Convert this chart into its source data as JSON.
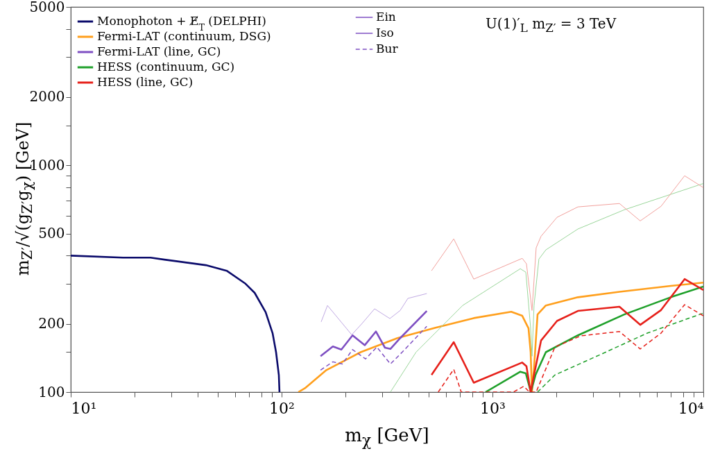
{
  "chart_data": {
    "type": "line",
    "xlabel": "m$_{χ}$ [GeV]",
    "ylabel": "m$_{Z′}$/√(g$_{Z′}$g$_{χ}$) [GeV]",
    "log": "xy",
    "legend": "top left",
    "xlim": [
      10,
      10000
    ],
    "ylim": [
      100,
      5000
    ],
    "xticks": [
      {
        "value": 10,
        "label": "10¹"
      },
      {
        "value": 20,
        "label": null
      },
      {
        "value": 30,
        "label": null
      },
      {
        "value": 40,
        "label": null
      },
      {
        "value": 50,
        "label": null
      },
      {
        "value": 60,
        "label": null
      },
      {
        "value": 70,
        "label": null
      },
      {
        "value": 80,
        "label": null
      },
      {
        "value": 90,
        "label": null
      },
      {
        "value": 100,
        "label": "10²"
      },
      {
        "value": 200,
        "label": null
      },
      {
        "value": 300,
        "label": null
      },
      {
        "value": 400,
        "label": null
      },
      {
        "value": 500,
        "label": null
      },
      {
        "value": 600,
        "label": null
      },
      {
        "value": 700,
        "label": null
      },
      {
        "value": 800,
        "label": null
      },
      {
        "value": 900,
        "label": null
      },
      {
        "value": 1000,
        "label": "10³"
      },
      {
        "value": 2000,
        "label": null
      },
      {
        "value": 3000,
        "label": null
      },
      {
        "value": 4000,
        "label": null
      },
      {
        "value": 5000,
        "label": null
      },
      {
        "value": 6000,
        "label": null
      },
      {
        "value": 7000,
        "label": null
      },
      {
        "value": 8000,
        "label": null
      },
      {
        "value": 9000,
        "label": null
      },
      {
        "value": 10000,
        "label": "10⁴"
      }
    ],
    "yticks": [
      100,
      {
        "value": 150,
        "label": null
      },
      200,
      {
        "value": 300,
        "label": null
      },
      {
        "value": 400,
        "label": null
      },
      500,
      {
        "value": 600,
        "label": null
      },
      {
        "value": 700,
        "label": null
      },
      {
        "value": 800,
        "label": null
      },
      {
        "value": 900,
        "label": null
      },
      1000,
      {
        "value": 1500,
        "label": null
      },
      2000,
      {
        "value": 3000,
        "label": null
      },
      {
        "value": 4000,
        "label": null
      },
      5000
    ],
    "annotations": [
      "Ein",
      "Iso",
      "Bur",
      "U(1)′$_{L}$   m$_{Z′}$ = 3 TeV"
    ],
    "series": [
      {
        "name": "Monophoton + E̸$_{T}$ (DELPHI)",
        "color": "#0b0b6b",
        "line_style": "solid",
        "x": [
          10,
          17.7,
          23.9,
          27.8,
          43.7,
          54.9,
          67,
          74.5,
          84,
          90.6,
          94.1,
          97,
          97.7
        ],
        "values": [
          400,
          392,
          392,
          384,
          363,
          343,
          302,
          274,
          225,
          182,
          150,
          119,
          100
        ]
      },
      {
        "name": "Fermi-LAT (continuum, DSG)",
        "color": "#ff9f1c",
        "line_style": "solid",
        "x": [
          120,
          129,
          163,
          237,
          354,
          533,
          815,
          1227,
          1384,
          1482,
          1517,
          1538,
          1574,
          1636,
          1791,
          2541,
          4000,
          7000,
          10000
        ],
        "values": [
          100,
          104,
          125,
          150,
          173,
          192,
          212,
          226,
          217,
          191,
          150,
          100,
          128,
          220,
          241,
          262,
          277,
          294,
          304
        ]
      },
      {
        "name": "Fermi-LAT (line, GC)",
        "color": "#7e4fc2",
        "line_style": "solid",
        "x": [
          153,
          175,
          192,
          217,
          248,
          280,
          309,
          328,
          365,
          488
        ],
        "values": [
          144,
          159,
          154,
          178,
          161,
          185,
          157,
          155,
          173,
          228
        ]
      },
      {
        "color": "#c0a9e3",
        "line_style": "solid",
        "x": [
          154,
          165,
          215,
          241,
          276,
          326,
          365,
          397,
          488
        ],
        "values": [
          204,
          241,
          179,
          201,
          233,
          211,
          229,
          259,
          272
        ]
      },
      {
        "color": "#7e4fc2",
        "line_style": "dashed",
        "x": [
          153,
          175,
          194,
          217,
          250,
          283,
          328,
          373,
          488
        ],
        "values": [
          125,
          136,
          133,
          154,
          140,
          158,
          133,
          150,
          195
        ]
      },
      {
        "name": "HESS (continuum, GC)",
        "color": "#1fa02a",
        "line_style": "solid",
        "x": [
          927,
          1355,
          1439,
          1520,
          1600,
          1791,
          2541,
          4217,
          7000,
          10000
        ],
        "values": [
          100,
          123,
          121,
          100,
          119,
          150,
          178,
          220,
          262,
          292
        ]
      },
      {
        "color": "#9ad69a",
        "line_style": "solid",
        "x": [
          328,
          434,
          722,
          1355,
          1439,
          1517,
          1540,
          1574,
          1660,
          1791,
          2541,
          4217,
          7000,
          10000
        ],
        "values": [
          100,
          150,
          241,
          350,
          338,
          191,
          144,
          241,
          386,
          424,
          524,
          637,
          745,
          832
        ]
      },
      {
        "color": "#1fa02a",
        "line_style": "dashed",
        "x": [
          1636,
          1977,
          3282,
          5420,
          10000
        ],
        "values": [
          100,
          119,
          147,
          182,
          223
        ]
      },
      {
        "name": "HESS (line, GC)",
        "color": "#e6201a",
        "line_style": "solid",
        "x": [
          514,
          655,
          815,
          1384,
          1449,
          1517,
          1574,
          1700,
          2023,
          2541,
          4000,
          5020,
          6300,
          8150,
          10000
        ],
        "values": [
          119,
          166,
          110,
          135,
          130,
          100,
          119,
          169,
          206,
          228,
          238,
          198,
          230,
          315,
          282
        ]
      },
      {
        "color": "#f2a09c",
        "line_style": "solid",
        "x": [
          514,
          655,
          815,
          1384,
          1449,
          1540,
          1611,
          1700,
          2023,
          2541,
          4000,
          5020,
          6300,
          8150,
          10000
        ],
        "values": [
          343,
          474,
          315,
          389,
          368,
          229,
          433,
          487,
          590,
          656,
          679,
          569,
          660,
          900,
          798
        ]
      },
      {
        "color": "#e6201a",
        "line_style": "dashed",
        "x": [
          553,
          655,
          711,
          1256,
          1406,
          1500,
          1611,
          1977,
          2620,
          4000,
          5020,
          6300,
          8150,
          10000
        ],
        "values": [
          100,
          126,
          100,
          100,
          106,
          100,
          100,
          158,
          177,
          185,
          155,
          182,
          243,
          217
        ]
      }
    ]
  }
}
